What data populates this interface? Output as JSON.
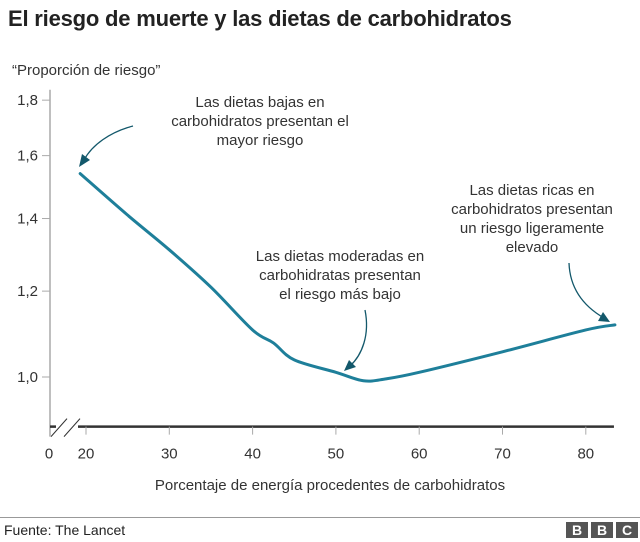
{
  "title": "El riesgo de muerte y las dietas de carbohidratos",
  "footer": {
    "source": "Fuente: The Lancet",
    "logo_letters": [
      "B",
      "B",
      "C"
    ]
  },
  "colors": {
    "line": "#1e7f9a",
    "arrow": "#13586b",
    "axis": "#333333",
    "text": "#333333"
  },
  "chart_data": {
    "type": "line",
    "title": "El riesgo de muerte y las dietas de carbohidratos",
    "xlabel": "Porcentaje de energía procedentes de carbohidratos",
    "ylabel": "“Proporción de riesgo”",
    "y_scale": "log",
    "x_axis_break": true,
    "grid": false,
    "xlim": [
      17,
      83.5
    ],
    "ylim": [
      0.9,
      1.84
    ],
    "x_ticks": [
      {
        "v": 20,
        "label": "20"
      },
      {
        "v": 30,
        "label": "30"
      },
      {
        "v": 40,
        "label": "40"
      },
      {
        "v": 50,
        "label": "50"
      },
      {
        "v": 60,
        "label": "60"
      },
      {
        "v": 70,
        "label": "70"
      },
      {
        "v": 80,
        "label": "80"
      }
    ],
    "x_break_label": "0",
    "y_ticks": [
      {
        "v": 1.0,
        "label": "1,0"
      },
      {
        "v": 1.2,
        "label": "1,2"
      },
      {
        "v": 1.4,
        "label": "1,4"
      },
      {
        "v": 1.6,
        "label": "1,6"
      },
      {
        "v": 1.8,
        "label": "1,8"
      }
    ],
    "series": [
      {
        "x": [
          19.3,
          25,
          30,
          35,
          40,
          42.5,
          45,
          50,
          53.3,
          56,
          60,
          70,
          80,
          83.5
        ],
        "y": [
          1.54,
          1.41,
          1.31,
          1.21,
          1.105,
          1.075,
          1.037,
          1.01,
          0.992,
          0.996,
          1.01,
          1.055,
          1.105,
          1.117
        ]
      }
    ],
    "annotations": [
      {
        "lines": [
          "Las dietas bajas en",
          "carbohidratos presentan el",
          "mayor riesgo"
        ]
      },
      {
        "lines": [
          "Las dietas moderadas en",
          "carbohidratas presentan",
          "el riesgo más bajo"
        ]
      },
      {
        "lines": [
          "Las dietas ricas en",
          "carbohidratos presentan",
          "un riesgo ligeramente",
          "elevado"
        ]
      }
    ]
  }
}
